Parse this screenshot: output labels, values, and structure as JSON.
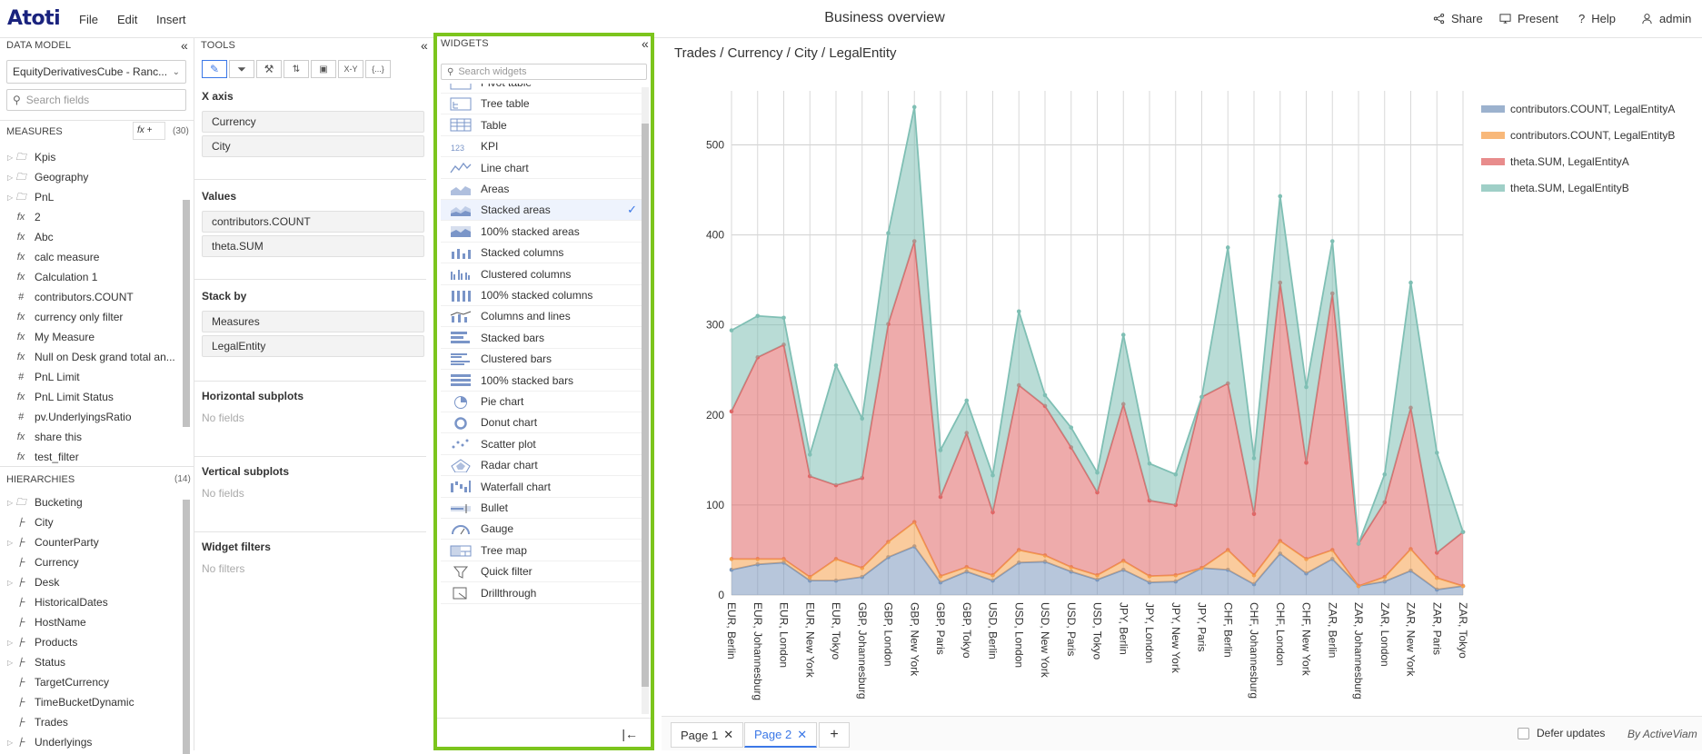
{
  "app": {
    "logo": "Atoti",
    "title": "Business overview"
  },
  "menu": [
    "File",
    "Edit",
    "Insert"
  ],
  "toolbar": {
    "share": "Share",
    "present": "Present",
    "help": "Help",
    "user": "admin"
  },
  "data_model": {
    "header": "DATA MODEL",
    "cube": "EquityDerivativesCube - Ranc...",
    "search_placeholder": "Search fields",
    "measures_label": "MEASURES",
    "measures_count": "(30)",
    "fx_btn": "fx +",
    "measures": [
      {
        "icon": "folder",
        "label": "Kpis",
        "arrow": true
      },
      {
        "icon": "folder",
        "label": "Geography",
        "arrow": true
      },
      {
        "icon": "folder",
        "label": "PnL",
        "arrow": true
      },
      {
        "icon": "fx",
        "label": "2"
      },
      {
        "icon": "fx",
        "label": "Abc"
      },
      {
        "icon": "fx",
        "label": "calc measure"
      },
      {
        "icon": "fx",
        "label": "Calculation 1"
      },
      {
        "icon": "#",
        "label": "contributors.COUNT"
      },
      {
        "icon": "fx",
        "label": "currency only filter"
      },
      {
        "icon": "fx",
        "label": "My Measure"
      },
      {
        "icon": "fx",
        "label": "Null on Desk grand total an..."
      },
      {
        "icon": "#",
        "label": "PnL Limit"
      },
      {
        "icon": "fx",
        "label": "PnL Limit Status"
      },
      {
        "icon": "#",
        "label": "pv.UnderlyingsRatio"
      },
      {
        "icon": "fx",
        "label": "share this"
      },
      {
        "icon": "fx",
        "label": "test_filter"
      }
    ],
    "hierarchies_label": "HIERARCHIES",
    "hierarchies_count": "(14)",
    "hierarchies": [
      {
        "icon": "folder",
        "label": "Bucketing",
        "arrow": true
      },
      {
        "icon": "hier",
        "label": "City"
      },
      {
        "icon": "hier",
        "label": "CounterParty",
        "arrow": true
      },
      {
        "icon": "hier",
        "label": "Currency"
      },
      {
        "icon": "hier",
        "label": "Desk",
        "arrow": true
      },
      {
        "icon": "hier",
        "label": "HistoricalDates"
      },
      {
        "icon": "hier",
        "label": "HostName"
      },
      {
        "icon": "hier",
        "label": "Products",
        "arrow": true
      },
      {
        "icon": "hier",
        "label": "Status",
        "arrow": true
      },
      {
        "icon": "hier",
        "label": "TargetCurrency"
      },
      {
        "icon": "hier",
        "label": "TimeBucketDynamic"
      },
      {
        "icon": "hier",
        "label": "Trades"
      },
      {
        "icon": "hier",
        "label": "Underlyings",
        "arrow": true
      }
    ]
  },
  "tools": {
    "header": "TOOLS",
    "tab_icons": [
      "pencil-icon",
      "filter-icon",
      "paint-icon",
      "sort-icon",
      "formula-icon",
      "xy-icon",
      "braces-icon"
    ],
    "tab_xy": "X-Y",
    "tab_braces": "{...}",
    "x_axis_label": "X axis",
    "x_axis": [
      "Currency",
      "City"
    ],
    "values_label": "Values",
    "values": [
      "contributors.COUNT",
      "theta.SUM"
    ],
    "stack_by_label": "Stack by",
    "stack_by": [
      "Measures",
      "LegalEntity"
    ],
    "hsub_label": "Horizontal subplots",
    "hsub_empty": "No fields",
    "vsub_label": "Vertical subplots",
    "vsub_empty": "No fields",
    "filters_label": "Widget filters",
    "filters_empty": "No filters"
  },
  "widgets": {
    "header": "WIDGETS",
    "search_placeholder": "Search widgets",
    "items": [
      {
        "label": "Pivot table",
        "icon": "pivot-table-icon"
      },
      {
        "label": "Tree table",
        "icon": "tree-table-icon"
      },
      {
        "label": "Table",
        "icon": "table-icon"
      },
      {
        "label": "KPI",
        "icon": "kpi-icon"
      },
      {
        "label": "Line chart",
        "icon": "line-chart-icon"
      },
      {
        "label": "Areas",
        "icon": "areas-icon"
      },
      {
        "label": "Stacked areas",
        "icon": "stacked-areas-icon",
        "selected": true
      },
      {
        "label": "100% stacked areas",
        "icon": "stacked-areas-100-icon"
      },
      {
        "label": "Stacked columns",
        "icon": "stacked-columns-icon"
      },
      {
        "label": "Clustered columns",
        "icon": "clustered-columns-icon"
      },
      {
        "label": "100% stacked columns",
        "icon": "stacked-columns-100-icon"
      },
      {
        "label": "Columns and lines",
        "icon": "columns-lines-icon"
      },
      {
        "label": "Stacked bars",
        "icon": "stacked-bars-icon"
      },
      {
        "label": "Clustered bars",
        "icon": "clustered-bars-icon"
      },
      {
        "label": "100% stacked bars",
        "icon": "stacked-bars-100-icon"
      },
      {
        "label": "Pie chart",
        "icon": "pie-chart-icon"
      },
      {
        "label": "Donut chart",
        "icon": "donut-chart-icon"
      },
      {
        "label": "Scatter plot",
        "icon": "scatter-plot-icon"
      },
      {
        "label": "Radar chart",
        "icon": "radar-chart-icon"
      },
      {
        "label": "Waterfall chart",
        "icon": "waterfall-chart-icon"
      },
      {
        "label": "Bullet",
        "icon": "bullet-icon"
      },
      {
        "label": "Gauge",
        "icon": "gauge-icon"
      },
      {
        "label": "Tree map",
        "icon": "tree-map-icon"
      },
      {
        "label": "Quick filter",
        "icon": "quick-filter-icon"
      },
      {
        "label": "Drillthrough",
        "icon": "drillthrough-icon"
      }
    ]
  },
  "main": {
    "breadcrumb": "Trades / Currency / City / LegalEntity",
    "tabs": [
      {
        "label": "Page 1"
      },
      {
        "label": "Page 2",
        "active": true
      }
    ],
    "add_tab": "+",
    "defer_updates": "Defer updates",
    "brand": "By ActiveViam"
  },
  "chart_data": {
    "type": "area",
    "stacked": true,
    "categories": [
      "EUR, Berlin",
      "EUR, Johannesburg",
      "EUR, London",
      "EUR, New York",
      "EUR, Tokyo",
      "GBP, Johannesburg",
      "GBP, London",
      "GBP, New York",
      "GBP, Paris",
      "GBP, Tokyo",
      "USD, Berlin",
      "USD, London",
      "USD, New York",
      "USD, Paris",
      "USD, Tokyo",
      "JPY, Berlin",
      "JPY, London",
      "JPY, New York",
      "JPY, Paris",
      "CHF, Berlin",
      "CHF, Johannesburg",
      "CHF, London",
      "CHF, New York",
      "ZAR, Berlin",
      "ZAR, Johannesburg",
      "ZAR, London",
      "ZAR, New York",
      "ZAR, Paris",
      "ZAR, Tokyo"
    ],
    "series": [
      {
        "name": "contributors.COUNT, LegalEntityA",
        "color": "#7b98be",
        "values": [
          28,
          34,
          36,
          16,
          16,
          20,
          42,
          54,
          14,
          26,
          16,
          36,
          37,
          26,
          17,
          28,
          14,
          15,
          30,
          28,
          12,
          46,
          24,
          40,
          10,
          15,
          27,
          6,
          10
        ]
      },
      {
        "name": "contributors.COUNT, LegalEntityB",
        "color": "#f5a04d",
        "values": [
          12,
          6,
          4,
          4,
          24,
          10,
          17,
          27,
          7,
          5,
          6,
          14,
          7,
          5,
          5,
          10,
          7,
          7,
          0,
          22,
          10,
          14,
          16,
          10,
          0,
          5,
          24,
          13,
          0
        ]
      },
      {
        "name": "theta.SUM, LegalEntityA",
        "color": "#e06666",
        "values": [
          164,
          224,
          238,
          112,
          82,
          100,
          242,
          312,
          88,
          149,
          70,
          183,
          166,
          133,
          92,
          174,
          84,
          78,
          190,
          185,
          68,
          287,
          107,
          285,
          47,
          83,
          157,
          28,
          60
        ]
      },
      {
        "name": "theta.SUM, LegalEntityB",
        "color": "#7fbfb4",
        "values": [
          90,
          46,
          30,
          24,
          133,
          66,
          101,
          149,
          52,
          36,
          41,
          82,
          12,
          22,
          22,
          77,
          41,
          34,
          0,
          151,
          62,
          96,
          84,
          58,
          0,
          31,
          139,
          111,
          0
        ]
      }
    ],
    "ylim": [
      0,
      560
    ],
    "yticks": [
      0,
      100,
      200,
      300,
      400,
      500
    ],
    "legend": "top-right",
    "grid": true
  }
}
